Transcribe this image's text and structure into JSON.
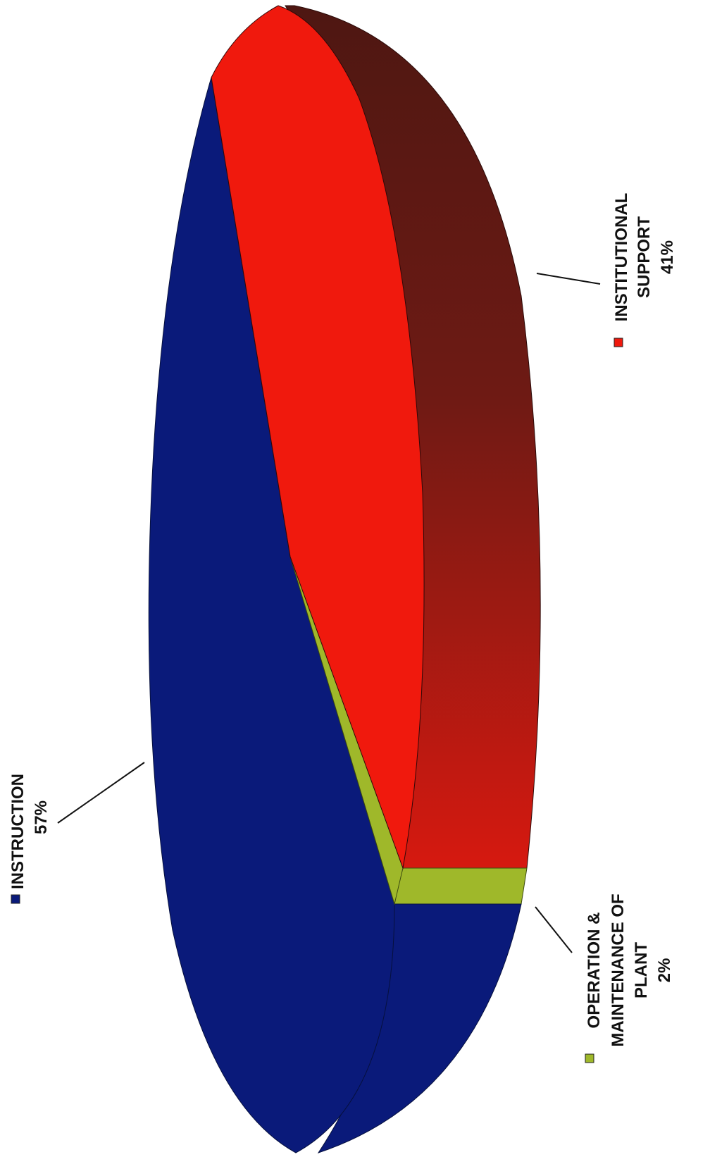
{
  "chart_data": {
    "type": "pie",
    "title": "",
    "series": [
      {
        "name": "",
        "slices": [
          {
            "label": "INSTRUCTION",
            "value": 57,
            "value_label": "57%",
            "color": "#0a1a7a"
          },
          {
            "label_lines": [
              "OPERATION &",
              "MAINTENANCE OF",
              "PLANT"
            ],
            "label": "OPERATION & MAINTENANCE OF PLANT",
            "value": 2,
            "value_label": "2%",
            "color": "#9fb82a"
          },
          {
            "label_lines": [
              "INSTITUTIONAL",
              "SUPPORT"
            ],
            "label": "INSTITUTIONAL SUPPORT",
            "value": 41,
            "value_label": "41%",
            "color": "#f0190d"
          }
        ]
      }
    ],
    "legend": "inline-labels",
    "style": "3d",
    "orientation": "rotated-90-clockwise"
  }
}
